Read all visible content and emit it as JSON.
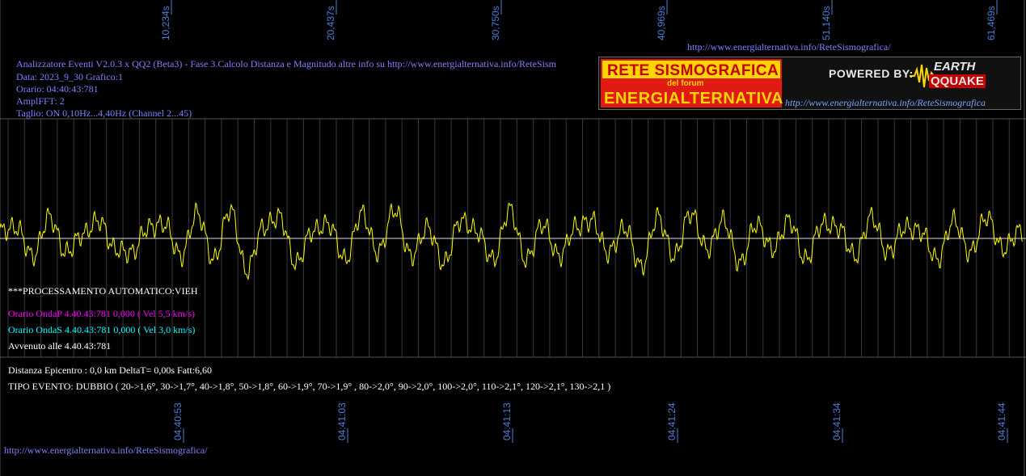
{
  "header": {
    "line1": "Analizzatore Eventi V2.0.3 x QQ2 (Beta3) - Fase 3.Calcolo Distanza e Magnitudo altre info su http://www.energialternativa.info/ReteSism",
    "line2": "Data: 2023_9_30 Grafico:1",
    "line3": "Orario: 04:40:43:781",
    "line4": "AmplFFT: 2",
    "line5": "Taglio: ON 0,10Hz...4,40Hz      (Channel 2...45)"
  },
  "top_link": "http://www.energialternativa.info/ReteSismografica/",
  "bottom_link": "http://www.energialternativa.info/ReteSismografica/",
  "logo": {
    "title1": "RETE SISMOGRAFICA",
    "subtitle": "del forum",
    "title2": "ENERGIALTERNATIVA",
    "powered": "POWERED BY:",
    "brand1": "EARTH",
    "brand2": "QQUAKE",
    "url": "http://www.energialternativa.info/ReteSismografica"
  },
  "info": {
    "processing": "***PROCESSAMENTO AUTOMATICO:VIEH",
    "onda_p": "Orario OndaP 4.40.43:781  0,000 ( Vel 5,5 km/s)",
    "onda_s": "Orario OndaS 4.40.43:781  0,000 ( Vel 3,0 km/s)",
    "avvenuto": "Avvenuto alle 4.40.43:781",
    "distanza": "Distanza Epicentro : 0,0 km DeltaT= 0,00s  Fatt:6,60",
    "tipo": "TIPO EVENTO: DUBBIO ( 20->1,6°, 30->1,7°, 40->1,8°, 50->1,8°, 60->1,9°, 70->1,9° , 80->2,0°, 90->2,0°, 100->2,0°, 110->2,1°, 120->2,1°, 130->2,1 )"
  },
  "colors": {
    "trace": "#ffff00",
    "background": "#000000",
    "grid": "#555555",
    "axis_label": "#4a7fd6",
    "header": "#8080ff",
    "onda_p": "#ff00ff",
    "onda_s": "#00ffff",
    "text": "#ffffff"
  },
  "chart_data": {
    "type": "line",
    "title": "",
    "xlabel": "",
    "ylabel": "",
    "top_ticks": [
      "10,234s",
      "20,437s",
      "30,750s",
      "40,969s",
      "51,140s",
      "61,469s"
    ],
    "bottom_ticks": [
      "04:40:53",
      "04:41:03",
      "04:41:13",
      "04:41:24",
      "04:41:34",
      "04:41:44"
    ],
    "x_range_s": [
      0,
      62.2
    ],
    "y_range": [
      -1,
      1
    ],
    "grid": true,
    "series": [
      {
        "name": "",
        "x": [
          0,
          1,
          2,
          3,
          4,
          5,
          6,
          7,
          8,
          9,
          10,
          11,
          12,
          13,
          14,
          15,
          16,
          17,
          18,
          19,
          20,
          21,
          22,
          23,
          24,
          25,
          26,
          27,
          28,
          29,
          30,
          31,
          32,
          33,
          34,
          35,
          36,
          37,
          38,
          39,
          40,
          41,
          42,
          43,
          44,
          45,
          46,
          47,
          48,
          49,
          50,
          51,
          52,
          53,
          54,
          55,
          56,
          57,
          58,
          59,
          60,
          61,
          62
        ],
        "values": [
          0.2,
          0.3,
          -0.5,
          0.6,
          -0.4,
          0.1,
          0.5,
          -0.3,
          -0.4,
          0.3,
          0.4,
          -0.5,
          0.7,
          -0.6,
          0.8,
          -0.9,
          0.3,
          0.6,
          -0.7,
          0.2,
          0.4,
          -0.6,
          0.7,
          -0.4,
          0.8,
          -0.5,
          0.3,
          -0.7,
          0.5,
          0.2,
          -0.6,
          0.8,
          -0.6,
          0.4,
          -0.5,
          0.3,
          0.5,
          -0.4,
          0.3,
          -0.8,
          0.6,
          -0.5,
          0.7,
          -0.3,
          0.5,
          -0.7,
          0.4,
          -0.3,
          0.5,
          -0.6,
          0.4,
          0.3,
          -0.5,
          0.6,
          -0.4,
          0.3,
          0.2,
          -0.6,
          0.5,
          -0.4,
          0.6,
          -0.3,
          0.2
        ]
      }
    ]
  }
}
